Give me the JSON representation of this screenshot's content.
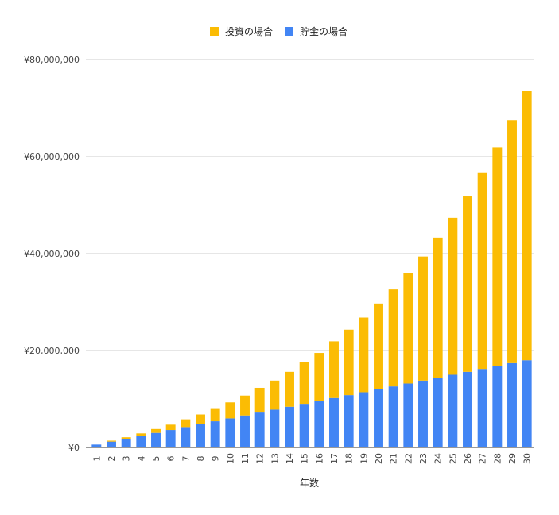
{
  "chart_data": {
    "type": "bar",
    "stacked": true,
    "xlabel": "年数",
    "ylabel": "",
    "ylim": [
      0,
      80000000
    ],
    "y_ticks": [
      0,
      20000000,
      40000000,
      60000000,
      80000000
    ],
    "y_tick_labels": [
      "¥0",
      "¥20,000,000",
      "¥40,000,000",
      "¥60,000,000",
      "¥80,000,000"
    ],
    "grid": true,
    "legend_position": "top",
    "categories": [
      "1",
      "2",
      "3",
      "4",
      "5",
      "6",
      "7",
      "8",
      "9",
      "10",
      "11",
      "12",
      "13",
      "14",
      "15",
      "16",
      "17",
      "18",
      "19",
      "20",
      "21",
      "22",
      "23",
      "24",
      "25",
      "26",
      "27",
      "28",
      "29",
      "30"
    ],
    "series": [
      {
        "name": "貯金の場合",
        "color": "#4285f4",
        "values": [
          600000,
          1200000,
          1800000,
          2400000,
          3000000,
          3600000,
          4200000,
          4800000,
          5400000,
          6000000,
          6600000,
          7200000,
          7800000,
          8400000,
          9000000,
          9600000,
          10200000,
          10800000,
          11400000,
          12000000,
          12600000,
          13200000,
          13800000,
          14400000,
          15000000,
          15600000,
          16200000,
          16800000,
          17400000,
          18000000
        ]
      },
      {
        "name": "投資の場合",
        "color": "#fbbc04",
        "values": [
          0,
          200000,
          300000,
          500000,
          800000,
          1100000,
          1600000,
          2000000,
          2700000,
          3300000,
          4100000,
          5100000,
          6000000,
          7200000,
          8600000,
          9900000,
          11700000,
          13500000,
          15400000,
          17700000,
          20000000,
          22700000,
          25600000,
          28900000,
          32400000,
          36200000,
          40400000,
          45100000,
          50100000,
          55500000
        ]
      }
    ],
    "legend_order": [
      "投資の場合",
      "貯金の場合"
    ]
  }
}
